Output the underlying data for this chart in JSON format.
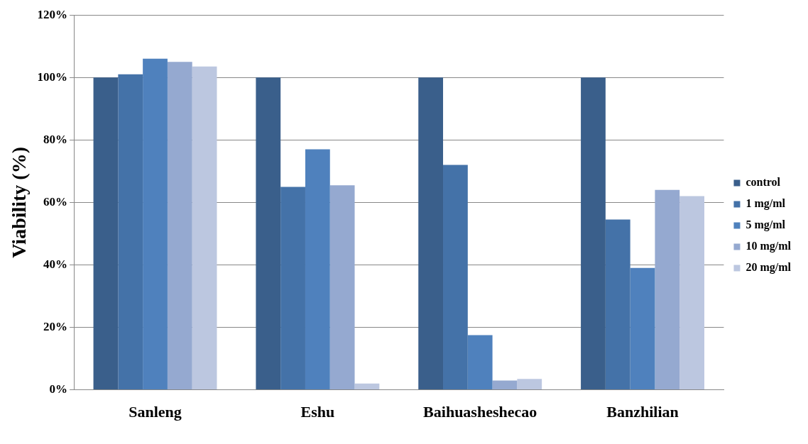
{
  "chart_data": {
    "type": "bar",
    "ylabel": "Viability (%)",
    "categories": [
      "Sanleng",
      "Eshu",
      "Baihuasheshecao",
      "Banzhilian"
    ],
    "series": [
      {
        "name": "control",
        "color": "#3a5f8b",
        "values": [
          100,
          100,
          100,
          100
        ]
      },
      {
        "name": "1 mg/ml",
        "color": "#4472a8",
        "values": [
          101,
          65,
          72,
          54.5
        ]
      },
      {
        "name": "5 mg/ml",
        "color": "#4f81bd",
        "values": [
          106,
          77,
          17.5,
          39
        ]
      },
      {
        "name": "10 mg/ml",
        "color": "#95a9d0",
        "values": [
          105,
          65.5,
          3,
          64
        ]
      },
      {
        "name": "20 mg/ml",
        "color": "#bcc7e0",
        "values": [
          103.5,
          2,
          3.5,
          62
        ]
      }
    ],
    "ylim": [
      0,
      120
    ],
    "yticks": [
      {
        "value": 0,
        "label": "0%"
      },
      {
        "value": 20,
        "label": "20%"
      },
      {
        "value": 40,
        "label": "40%"
      },
      {
        "value": 60,
        "label": "60%"
      },
      {
        "value": 80,
        "label": "80%"
      },
      {
        "value": 100,
        "label": "100%"
      },
      {
        "value": 120,
        "label": "120%"
      }
    ],
    "grid": "y",
    "legend": "right"
  }
}
